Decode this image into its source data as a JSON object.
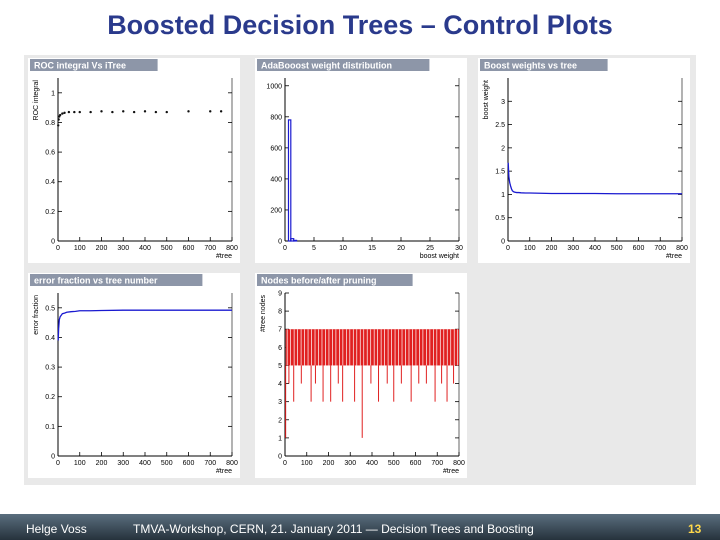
{
  "slide": {
    "title": "Boosted Decision Trees – Control Plots",
    "footer_author": "Helge Voss",
    "footer_event": "TMVA-Workshop, CERN,  21. January 2011  ― Decision Trees and Boosting",
    "page_number": "13",
    "colors": {
      "title": "#2a3a8c",
      "header_bg": "#8d96a8",
      "series_blue": "#1a1ad0",
      "series_red": "#e02020"
    }
  },
  "chart_data": [
    {
      "id": "roc",
      "type": "scatter",
      "title": "ROC integral Vs iTree",
      "xlabel": "#tree",
      "ylabel": "ROC integral",
      "xlim": [
        0,
        800
      ],
      "ylim": [
        0,
        1.1
      ],
      "xticks": [
        0,
        100,
        200,
        300,
        400,
        500,
        600,
        700,
        800
      ],
      "xtick_labels": [
        "0",
        "100",
        "200",
        "300",
        "400",
        "500",
        "600",
        "700",
        "800"
      ],
      "yticks": [
        0,
        0.2,
        0.4,
        0.6,
        0.8,
        1
      ],
      "ytick_labels": [
        "0",
        "0.2",
        "0.4",
        "0.6",
        "0.8",
        "1"
      ],
      "series": [
        {
          "color": "#111111",
          "x": [
            1,
            3,
            6,
            10,
            20,
            30,
            50,
            75,
            100,
            150,
            200,
            250,
            300,
            350,
            400,
            450,
            500,
            600,
            700,
            750
          ],
          "y": [
            0.78,
            0.82,
            0.84,
            0.85,
            0.86,
            0.865,
            0.87,
            0.87,
            0.87,
            0.87,
            0.875,
            0.87,
            0.875,
            0.87,
            0.875,
            0.87,
            0.87,
            0.875,
            0.875,
            0.875
          ]
        }
      ]
    },
    {
      "id": "adaweight",
      "type": "bar",
      "title": "AdaBooost weight distribution",
      "xlabel": "boost weight",
      "ylabel": "",
      "xlim": [
        0,
        30
      ],
      "ylim": [
        0,
        1050
      ],
      "xticks": [
        0,
        5,
        10,
        15,
        20,
        25,
        30
      ],
      "xtick_labels": [
        "0",
        "5",
        "10",
        "15",
        "20",
        "25",
        "30"
      ],
      "yticks": [
        0,
        200,
        400,
        600,
        800,
        1000
      ],
      "ytick_labels": [
        "0",
        "200",
        "400",
        "600",
        "800",
        "1000"
      ],
      "series": [
        {
          "color": "#1a1ad0",
          "bins": [
            [
              0.6,
              1.0,
              780
            ],
            [
              1.0,
              1.5,
              15
            ],
            [
              1.5,
              2.0,
              4
            ]
          ]
        }
      ]
    },
    {
      "id": "boostvstree",
      "type": "line",
      "title": "Boost weights vs tree",
      "xlabel": "#tree",
      "ylabel": "boost weight",
      "xlim": [
        0,
        800
      ],
      "ylim": [
        0,
        3.5
      ],
      "xticks": [
        0,
        100,
        200,
        300,
        400,
        500,
        600,
        700,
        800
      ],
      "xtick_labels": [
        "0",
        "100",
        "200",
        "300",
        "400",
        "500",
        "600",
        "700",
        "800"
      ],
      "yticks": [
        0,
        0.5,
        1,
        1.5,
        2,
        2.5,
        3
      ],
      "ytick_labels": [
        "0",
        "0.5",
        "1",
        "1.5",
        "2",
        "2.5",
        "3"
      ],
      "series": [
        {
          "color": "#1a1ad0",
          "x": [
            1,
            4,
            8,
            12,
            16,
            20,
            25,
            30,
            40,
            50,
            60,
            80,
            100,
            150,
            200,
            300,
            400,
            500,
            600,
            700,
            800
          ],
          "y": [
            1.68,
            1.38,
            1.25,
            1.18,
            1.12,
            1.08,
            1.06,
            1.05,
            1.04,
            1.04,
            1.035,
            1.03,
            1.03,
            1.025,
            1.02,
            1.02,
            1.02,
            1.015,
            1.015,
            1.015,
            1.015
          ]
        }
      ]
    },
    {
      "id": "errfrac",
      "type": "line",
      "title": "error fraction vs tree number",
      "xlabel": "#tree",
      "ylabel": "error fraction",
      "xlim": [
        0,
        800
      ],
      "ylim": [
        0,
        0.55
      ],
      "xticks": [
        0,
        100,
        200,
        300,
        400,
        500,
        600,
        700,
        800
      ],
      "xtick_labels": [
        "0",
        "100",
        "200",
        "300",
        "400",
        "500",
        "600",
        "700",
        "800"
      ],
      "yticks": [
        0,
        0.1,
        0.2,
        0.3,
        0.4,
        0.5
      ],
      "ytick_labels": [
        "0",
        "0.1",
        "0.2",
        "0.3",
        "0.4",
        "0.5"
      ],
      "series": [
        {
          "color": "#1a1ad0",
          "x": [
            1,
            3,
            6,
            10,
            15,
            20,
            30,
            40,
            60,
            80,
            100,
            150,
            200,
            300,
            400,
            500,
            600,
            700,
            800
          ],
          "y": [
            0.39,
            0.43,
            0.46,
            0.47,
            0.475,
            0.48,
            0.482,
            0.485,
            0.487,
            0.488,
            0.49,
            0.49,
            0.491,
            0.492,
            0.492,
            0.492,
            0.492,
            0.492,
            0.492
          ]
        }
      ]
    },
    {
      "id": "nodes",
      "type": "bar",
      "title": "Nodes before/after pruning",
      "xlabel": "#tree",
      "ylabel": "#tree nodes",
      "xlim": [
        0,
        800
      ],
      "ylim": [
        0,
        9
      ],
      "xticks": [
        0,
        100,
        200,
        300,
        400,
        500,
        600,
        700,
        800
      ],
      "xtick_labels": [
        "0",
        "100",
        "200",
        "300",
        "400",
        "500",
        "600",
        "700",
        "800"
      ],
      "yticks": [
        0,
        1,
        2,
        3,
        4,
        5,
        6,
        7,
        8,
        9
      ],
      "ytick_labels": [
        "0",
        "1",
        "2",
        "3",
        "4",
        "5",
        "6",
        "7",
        "8",
        "9"
      ],
      "series": [
        {
          "color": "#e02020",
          "top": 7,
          "base": 5,
          "dips": [
            [
              3,
              1
            ],
            [
              18,
              4
            ],
            [
              40,
              3
            ],
            [
              75,
              4
            ],
            [
              120,
              3
            ],
            [
              140,
              4
            ],
            [
              175,
              3
            ],
            [
              210,
              3
            ],
            [
              245,
              4
            ],
            [
              265,
              3
            ],
            [
              320,
              3
            ],
            [
              355,
              1
            ],
            [
              395,
              4
            ],
            [
              430,
              3
            ],
            [
              470,
              4
            ],
            [
              500,
              3
            ],
            [
              535,
              4
            ],
            [
              580,
              3
            ],
            [
              615,
              4
            ],
            [
              650,
              4
            ],
            [
              690,
              3
            ],
            [
              720,
              4
            ],
            [
              745,
              3
            ],
            [
              775,
              4
            ]
          ]
        }
      ]
    }
  ]
}
